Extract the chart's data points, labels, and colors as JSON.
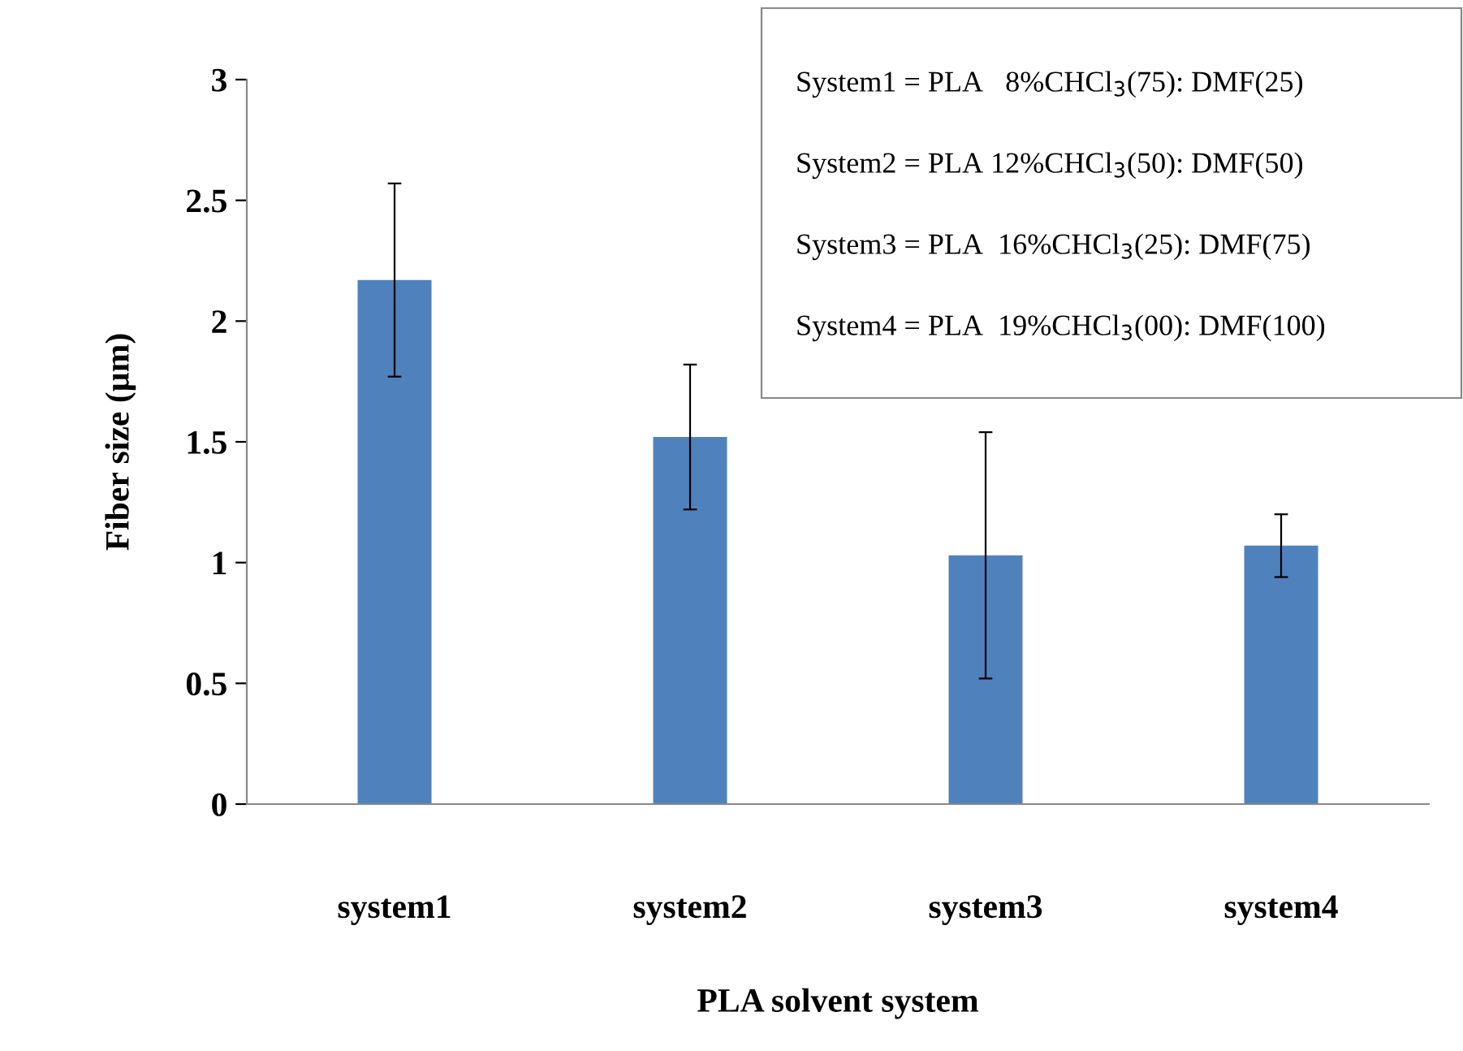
{
  "chart_data": {
    "type": "bar",
    "xlabel": "PLA solvent system",
    "ylabel": "Fiber size (µm)",
    "categories": [
      "system1",
      "system2",
      "system3",
      "system4"
    ],
    "values": [
      2.17,
      1.52,
      1.03,
      1.07
    ],
    "errors": [
      0.4,
      0.3,
      0.51,
      0.13
    ],
    "color": "#4f81bd",
    "ylim": [
      0,
      3
    ],
    "yticks": [
      0,
      0.5,
      1,
      1.5,
      2,
      2.5,
      3
    ],
    "grid": false,
    "annotations": [
      "System1 = PLA   8%CHCl$_{3}$(75): DMF(25)",
      "System2 = PLA 12%CHCl$_{3}$(50): DMF(50)",
      "System3 = PLA  16%CHCl$_{3}$(25): DMF(75)",
      "System4 = PLA  19%CHCl$_{3}$(00): DMF(100)"
    ]
  }
}
